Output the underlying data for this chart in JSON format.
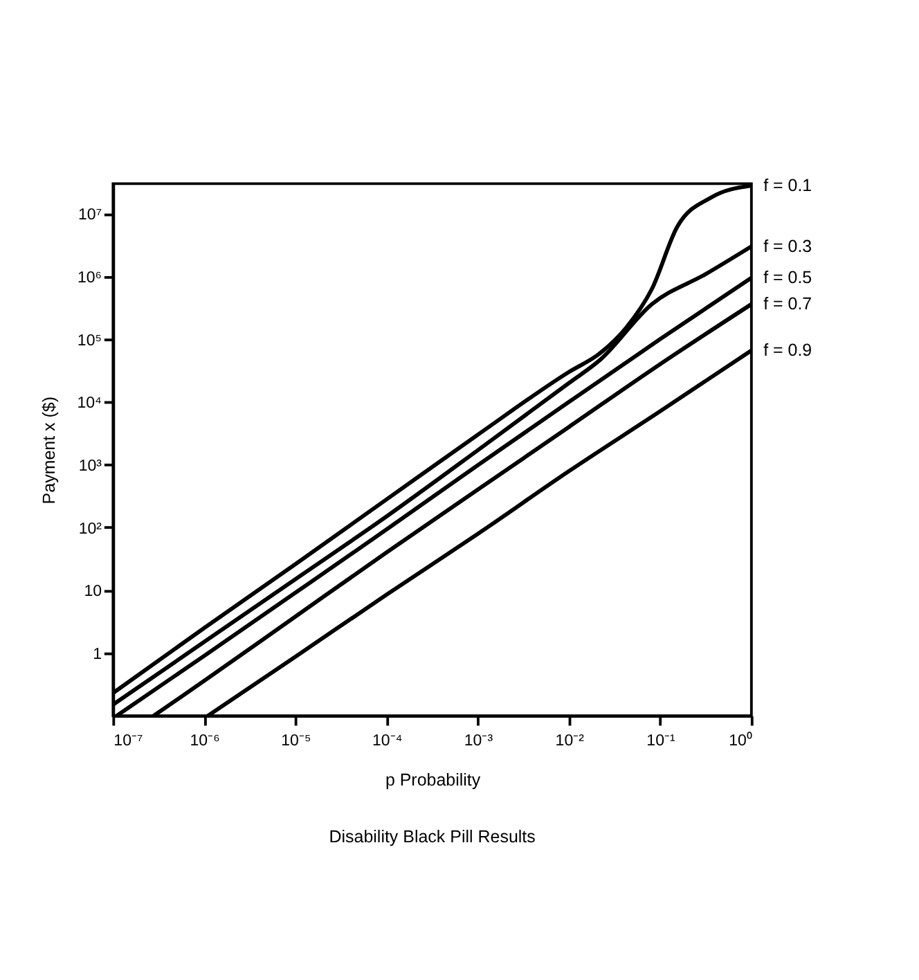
{
  "chart_data": {
    "type": "line",
    "title": "Disability Black Pill Results",
    "xlabel": "p  Probability",
    "ylabel": "Payment x ($)",
    "log": "xy",
    "grid": false,
    "marker": "none",
    "line_style": "solid",
    "xlim": [
      1e-07,
      1
    ],
    "xticks": [
      {
        "value": 1e-07,
        "label": "10⁻⁷"
      },
      {
        "value": 1e-06,
        "label": "10⁻⁶"
      },
      {
        "value": 1e-05,
        "label": "10⁻⁵"
      },
      {
        "value": 0.0001,
        "label": "10⁻⁴"
      },
      {
        "value": 0.001,
        "label": "10⁻³"
      },
      {
        "value": 0.01,
        "label": "10⁻²"
      },
      {
        "value": 0.1,
        "label": "10⁻¹"
      },
      {
        "value": 1,
        "label": "10⁰"
      }
    ],
    "ylim": [
      0.1,
      30000000
    ],
    "yticks": [
      1,
      10,
      {
        "value": 100,
        "label": "10²"
      },
      {
        "value": 1000,
        "label": "10³"
      },
      {
        "value": 10000,
        "label": "10⁴"
      },
      {
        "value": 100000,
        "label": "10⁵"
      },
      {
        "value": 1000000,
        "label": "10⁶"
      },
      {
        "value": 10000000,
        "label": "10⁷"
      }
    ],
    "series": [
      {
        "name": "f = 0.1",
        "color": "#000000",
        "x": [
          1e-07,
          1e-06,
          1e-05,
          0.0001,
          0.001,
          0.01,
          0.022,
          0.042,
          0.081,
          0.155,
          0.36,
          1
        ],
        "values": [
          0.23,
          2.5,
          26,
          280,
          3000,
          30000,
          60000,
          150000,
          630000,
          6300000,
          18000000,
          28000000
        ]
      },
      {
        "name": "f = 0.3",
        "color": "#000000",
        "x": [
          1e-07,
          1e-06,
          1e-05,
          0.0001,
          0.001,
          0.01,
          0.022,
          0.081,
          0.32,
          1
        ],
        "values": [
          0.15,
          1.5,
          15,
          150,
          1700,
          20000,
          47000,
          360000,
          1100000,
          3000000
        ]
      },
      {
        "name": "f = 0.5",
        "color": "#000000",
        "x": [
          1.1e-07,
          1e-06,
          1e-05,
          0.0001,
          0.001,
          0.01,
          0.1,
          1
        ],
        "values": [
          0.1,
          0.9,
          9.1,
          93,
          980,
          10000,
          100000,
          950000
        ]
      },
      {
        "name": "f = 0.7",
        "color": "#000000",
        "x": [
          2.8e-07,
          1e-06,
          1e-05,
          0.0001,
          0.001,
          0.01,
          0.1,
          1
        ],
        "values": [
          0.1,
          0.36,
          3.8,
          40,
          400,
          4000,
          40000,
          360000
        ]
      },
      {
        "name": "f = 0.9",
        "color": "#000000",
        "x": [
          1.1e-06,
          1e-05,
          0.0001,
          0.001,
          0.01,
          0.1,
          1
        ],
        "values": [
          0.1,
          0.87,
          8.5,
          79,
          790,
          7100,
          66000
        ]
      }
    ]
  }
}
